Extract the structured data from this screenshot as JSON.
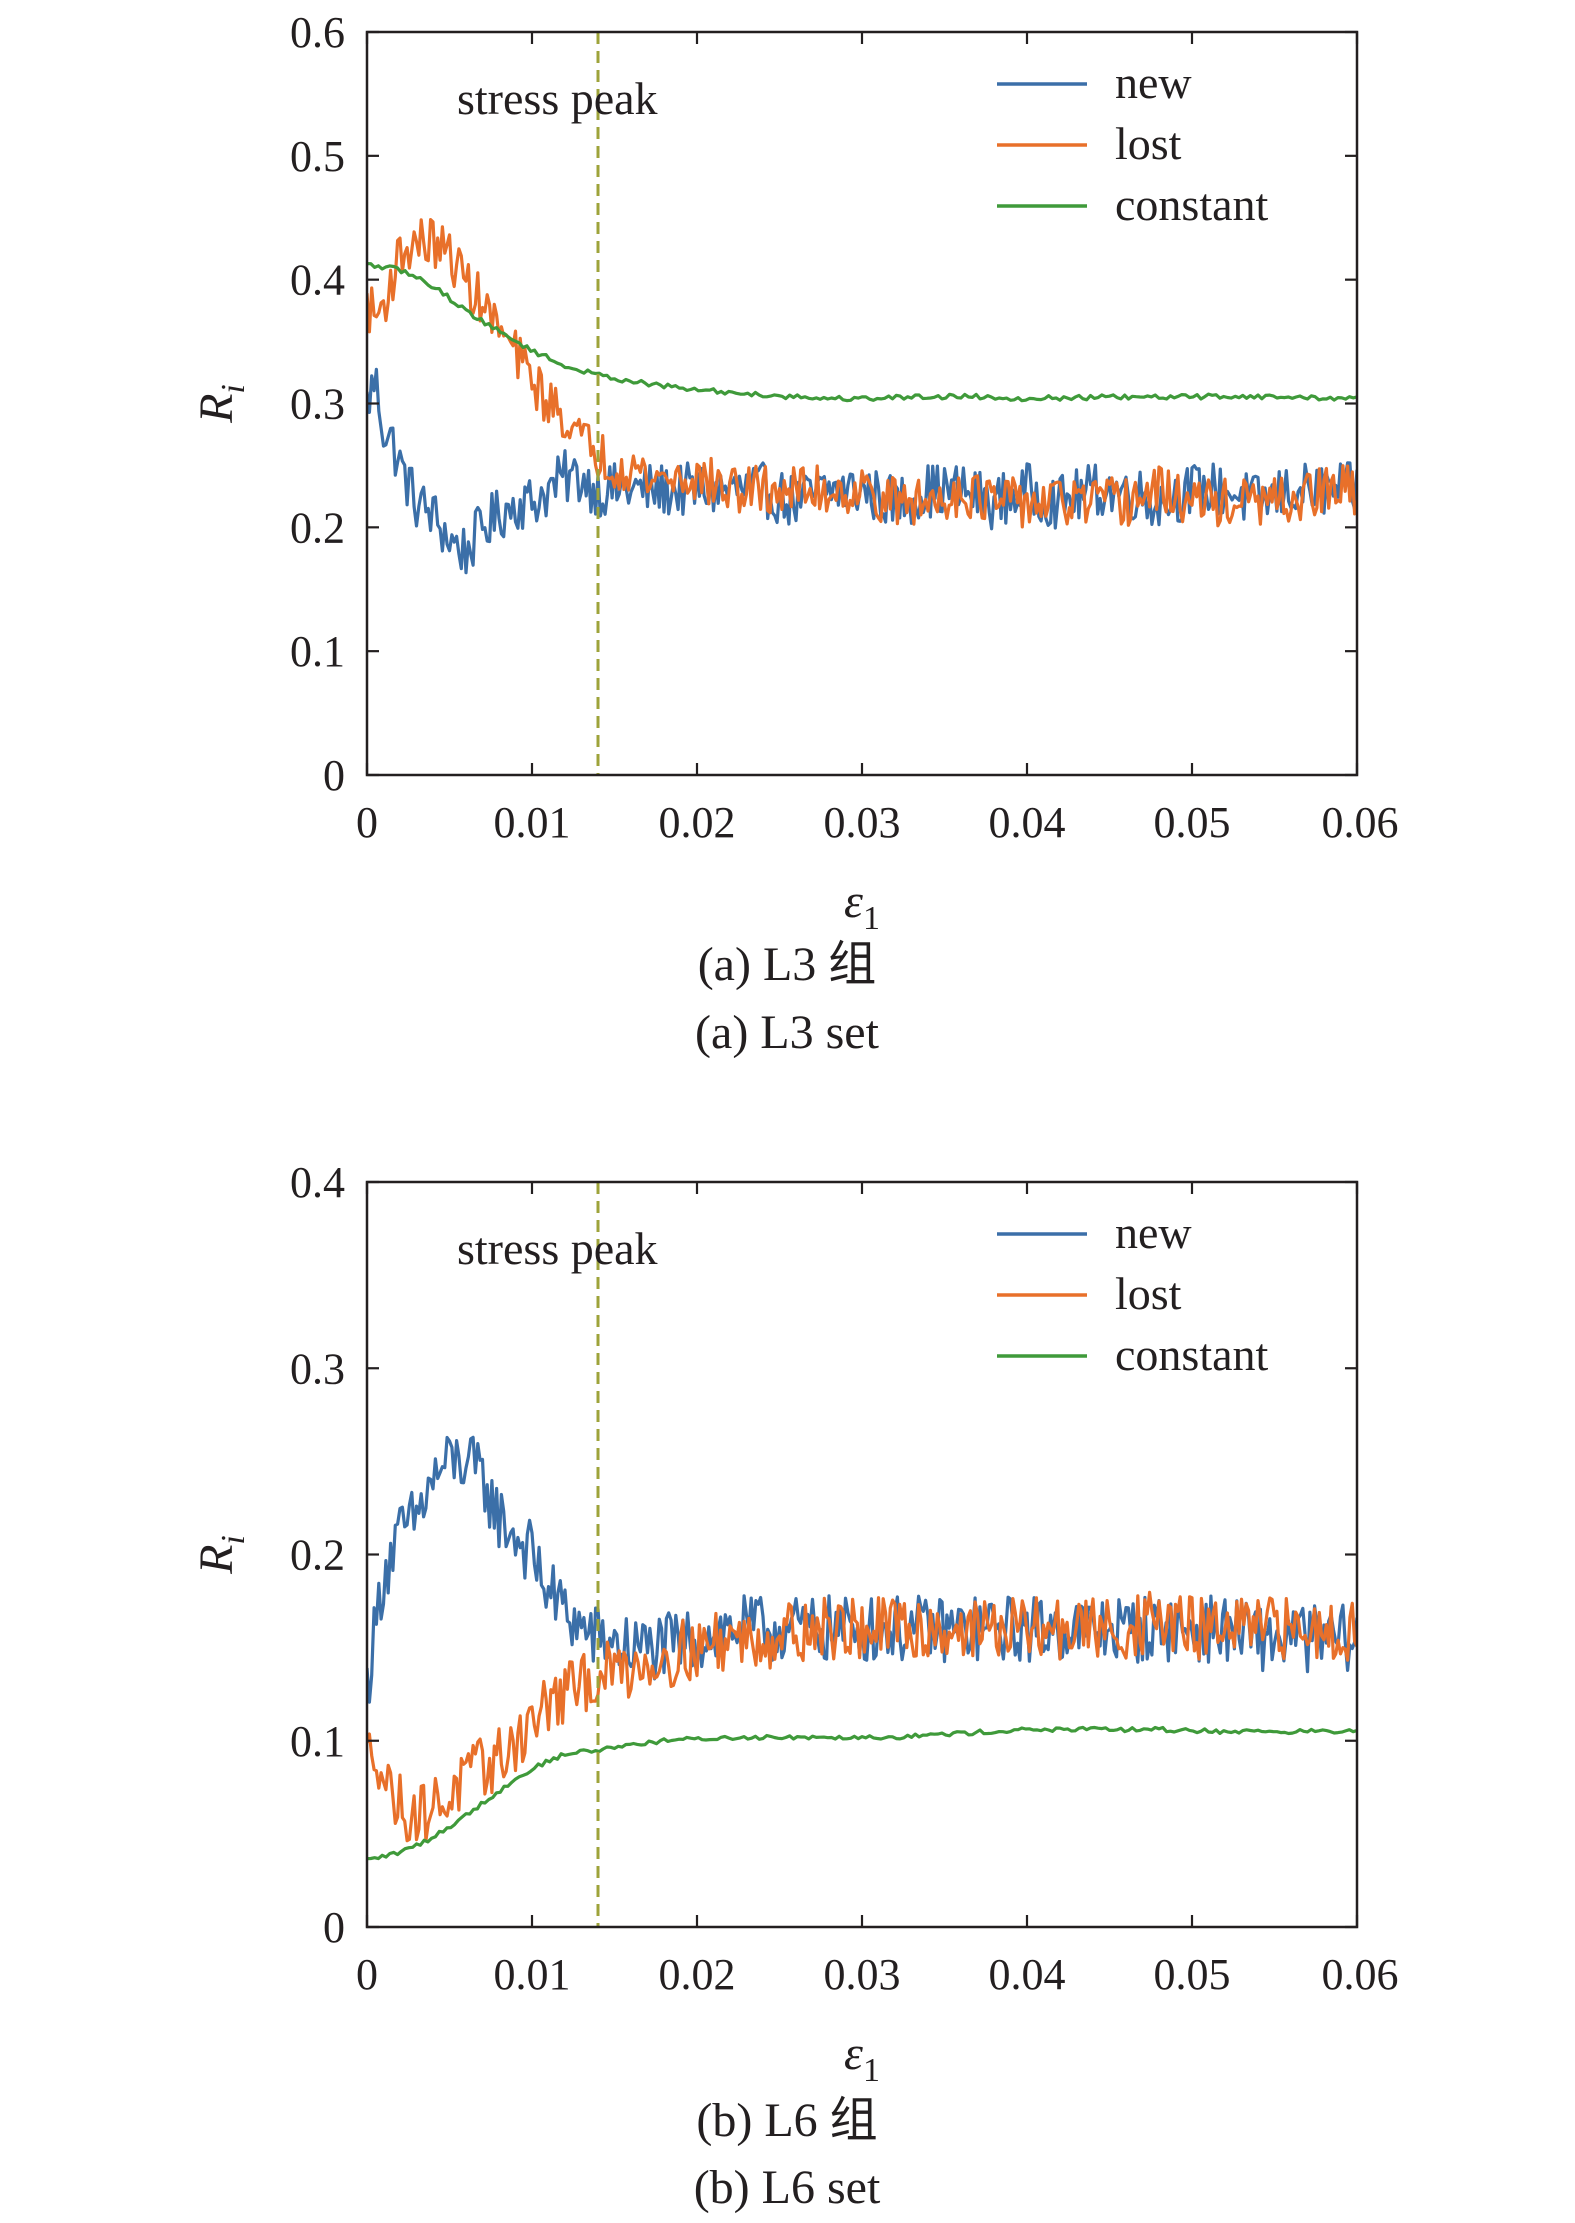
{
  "chart_data": [
    {
      "type": "line",
      "panel_id": "a",
      "xlim": [
        0,
        0.06
      ],
      "ylim": [
        0,
        0.6
      ],
      "xticks": [
        0,
        0.01,
        0.02,
        0.03,
        0.04,
        0.05,
        0.06
      ],
      "xtick_labels": [
        "0",
        "0.01",
        "0.02",
        "0.03",
        "0.04",
        "0.05",
        "0.06"
      ],
      "yticks": [
        0,
        0.1,
        0.2,
        0.3,
        0.4,
        0.5,
        0.6
      ],
      "ytick_labels": [
        "0",
        "0.1",
        "0.2",
        "0.3",
        "0.4",
        "0.5",
        "0.6"
      ],
      "ylabel": "R",
      "ylabel_sub": "i",
      "xlabel": "ε",
      "xlabel_sub": "1",
      "vline_x": 0.014,
      "vline_color": "#9ea33a",
      "annotation": "stress peak",
      "legend_position": "top-right",
      "grid": false,
      "caption_cn": "(a) L3 组",
      "caption_en": "(a) L3 set",
      "series": [
        {
          "name": "new",
          "color": "#3b6fa8",
          "x": [
            0,
            0.0005,
            0.001,
            0.0015,
            0.002,
            0.003,
            0.004,
            0.005,
            0.006,
            0.007,
            0.008,
            0.009,
            0.01,
            0.011,
            0.012,
            0.013,
            0.014,
            0.015,
            0.016,
            0.017,
            0.018,
            0.02,
            0.022,
            0.024,
            0.026,
            0.028,
            0.03,
            0.032,
            0.034,
            0.036,
            0.038,
            0.04,
            0.042,
            0.044,
            0.046,
            0.048,
            0.05,
            0.052,
            0.054,
            0.056,
            0.058,
            0.06
          ],
          "y": [
            0.3,
            0.32,
            0.28,
            0.27,
            0.25,
            0.22,
            0.21,
            0.19,
            0.18,
            0.2,
            0.21,
            0.22,
            0.22,
            0.23,
            0.24,
            0.24,
            0.23,
            0.23,
            0.23,
            0.23,
            0.23,
            0.23,
            0.23,
            0.23,
            0.22,
            0.23,
            0.23,
            0.22,
            0.23,
            0.23,
            0.22,
            0.23,
            0.22,
            0.23,
            0.23,
            0.22,
            0.23,
            0.23,
            0.22,
            0.23,
            0.23,
            0.23
          ],
          "noise": 0.022
        },
        {
          "name": "lost",
          "color": "#e8702a",
          "x": [
            0,
            0.0005,
            0.001,
            0.0015,
            0.002,
            0.003,
            0.004,
            0.005,
            0.006,
            0.007,
            0.008,
            0.009,
            0.01,
            0.011,
            0.012,
            0.013,
            0.014,
            0.015,
            0.016,
            0.017,
            0.018,
            0.02,
            0.022,
            0.024,
            0.026,
            0.028,
            0.03,
            0.032,
            0.034,
            0.036,
            0.038,
            0.04,
            0.042,
            0.044,
            0.046,
            0.048,
            0.05,
            0.052,
            0.054,
            0.056,
            0.058,
            0.06
          ],
          "y": [
            0.38,
            0.37,
            0.38,
            0.4,
            0.42,
            0.43,
            0.43,
            0.42,
            0.4,
            0.38,
            0.36,
            0.34,
            0.32,
            0.3,
            0.29,
            0.27,
            0.26,
            0.25,
            0.25,
            0.24,
            0.24,
            0.24,
            0.23,
            0.23,
            0.23,
            0.23,
            0.23,
            0.22,
            0.22,
            0.23,
            0.22,
            0.22,
            0.22,
            0.22,
            0.22,
            0.23,
            0.22,
            0.22,
            0.22,
            0.22,
            0.23,
            0.23
          ],
          "noise": 0.02
        },
        {
          "name": "constant",
          "color": "#3f9a3a",
          "x": [
            0,
            0.002,
            0.004,
            0.006,
            0.008,
            0.01,
            0.012,
            0.014,
            0.016,
            0.018,
            0.02,
            0.024,
            0.028,
            0.03,
            0.032,
            0.036,
            0.04,
            0.044,
            0.048,
            0.052,
            0.056,
            0.06
          ],
          "y": [
            0.412,
            0.408,
            0.395,
            0.375,
            0.358,
            0.343,
            0.33,
            0.323,
            0.318,
            0.314,
            0.311,
            0.307,
            0.304,
            0.304,
            0.305,
            0.306,
            0.304,
            0.305,
            0.305,
            0.306,
            0.305,
            0.304
          ],
          "noise": 0.002
        }
      ]
    },
    {
      "type": "line",
      "panel_id": "b",
      "xlim": [
        0,
        0.06
      ],
      "ylim": [
        0,
        0.4
      ],
      "xticks": [
        0,
        0.01,
        0.02,
        0.03,
        0.04,
        0.05,
        0.06
      ],
      "xtick_labels": [
        "0",
        "0.01",
        "0.02",
        "0.03",
        "0.04",
        "0.05",
        "0.06"
      ],
      "yticks": [
        0,
        0.1,
        0.2,
        0.3,
        0.4
      ],
      "ytick_labels": [
        "0",
        "0.1",
        "0.2",
        "0.3",
        "0.4"
      ],
      "ylabel": "R",
      "ylabel_sub": "i",
      "xlabel": "ε",
      "xlabel_sub": "1",
      "vline_x": 0.014,
      "vline_color": "#9ea33a",
      "annotation": "stress peak",
      "legend_position": "top-right",
      "grid": false,
      "caption_cn": "(b) L6 组",
      "caption_en": "(b) L6 set",
      "series": [
        {
          "name": "new",
          "color": "#3b6fa8",
          "x": [
            0,
            0.0005,
            0.001,
            0.002,
            0.003,
            0.004,
            0.005,
            0.006,
            0.007,
            0.008,
            0.009,
            0.01,
            0.011,
            0.012,
            0.013,
            0.014,
            0.016,
            0.018,
            0.02,
            0.022,
            0.024,
            0.026,
            0.028,
            0.03,
            0.032,
            0.034,
            0.036,
            0.038,
            0.04,
            0.042,
            0.044,
            0.046,
            0.048,
            0.05,
            0.052,
            0.054,
            0.056,
            0.058,
            0.06
          ],
          "y": [
            0.13,
            0.16,
            0.19,
            0.21,
            0.22,
            0.24,
            0.25,
            0.25,
            0.24,
            0.22,
            0.21,
            0.2,
            0.18,
            0.17,
            0.16,
            0.155,
            0.15,
            0.15,
            0.155,
            0.16,
            0.16,
            0.16,
            0.16,
            0.16,
            0.16,
            0.16,
            0.16,
            0.16,
            0.16,
            0.16,
            0.16,
            0.16,
            0.16,
            0.16,
            0.16,
            0.155,
            0.155,
            0.155,
            0.155
          ],
          "noise": 0.018
        },
        {
          "name": "lost",
          "color": "#e8702a",
          "x": [
            0,
            0.0005,
            0.001,
            0.002,
            0.003,
            0.004,
            0.005,
            0.006,
            0.007,
            0.008,
            0.009,
            0.01,
            0.011,
            0.012,
            0.013,
            0.014,
            0.016,
            0.018,
            0.02,
            0.022,
            0.024,
            0.026,
            0.028,
            0.03,
            0.032,
            0.034,
            0.036,
            0.038,
            0.04,
            0.042,
            0.044,
            0.046,
            0.048,
            0.05,
            0.052,
            0.054,
            0.056,
            0.058,
            0.06
          ],
          "y": [
            0.09,
            0.1,
            0.08,
            0.065,
            0.06,
            0.065,
            0.07,
            0.08,
            0.085,
            0.09,
            0.1,
            0.11,
            0.12,
            0.125,
            0.13,
            0.135,
            0.14,
            0.145,
            0.15,
            0.155,
            0.155,
            0.16,
            0.16,
            0.16,
            0.16,
            0.16,
            0.16,
            0.16,
            0.16,
            0.16,
            0.16,
            0.16,
            0.165,
            0.16,
            0.16,
            0.16,
            0.16,
            0.16,
            0.16
          ],
          "noise": 0.017
        },
        {
          "name": "constant",
          "color": "#3f9a3a",
          "x": [
            0,
            0.002,
            0.004,
            0.006,
            0.008,
            0.01,
            0.012,
            0.014,
            0.016,
            0.018,
            0.02,
            0.024,
            0.028,
            0.032,
            0.036,
            0.04,
            0.044,
            0.048,
            0.052,
            0.056,
            0.06
          ],
          "y": [
            0.036,
            0.04,
            0.048,
            0.06,
            0.073,
            0.085,
            0.093,
            0.095,
            0.098,
            0.1,
            0.101,
            0.102,
            0.102,
            0.102,
            0.104,
            0.106,
            0.106,
            0.106,
            0.105,
            0.105,
            0.105
          ],
          "noise": 0.0012
        }
      ]
    }
  ]
}
